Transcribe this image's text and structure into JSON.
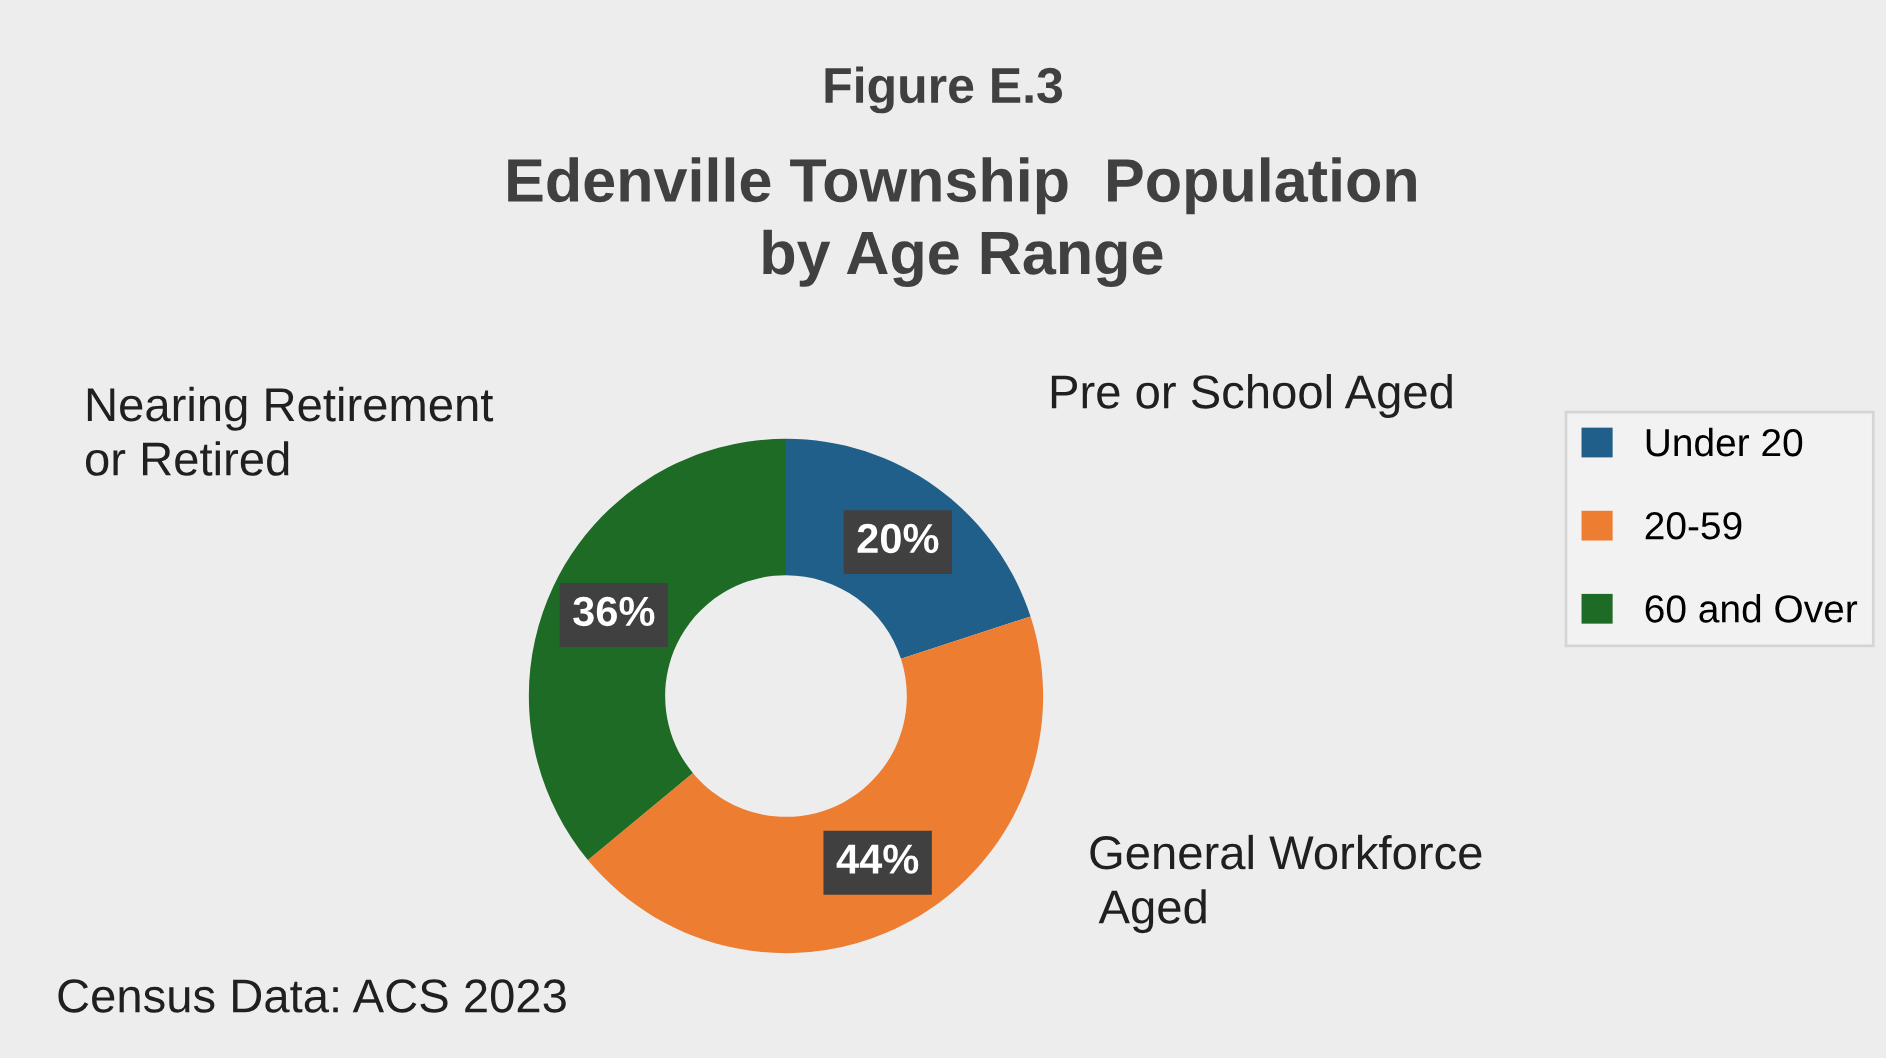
{
  "chart_data": {
    "type": "donut",
    "title": "Figure E.3",
    "subtitle": "Edenville Township  Population\nby Age Range",
    "categories": [
      "Under 20",
      "20-59",
      "60 and Over"
    ],
    "values": [
      20,
      44,
      36
    ],
    "colors": [
      "#1f5f8a",
      "#ed7d31",
      "#1e6b25"
    ],
    "value_labels": [
      "20%",
      "44%",
      "36%"
    ],
    "annotations": [
      "Pre or School Aged",
      "General Workforce\n Aged",
      "Nearing Retirement\nor Retired",
      "Census Data: ACS 2023"
    ],
    "legend": "right"
  }
}
